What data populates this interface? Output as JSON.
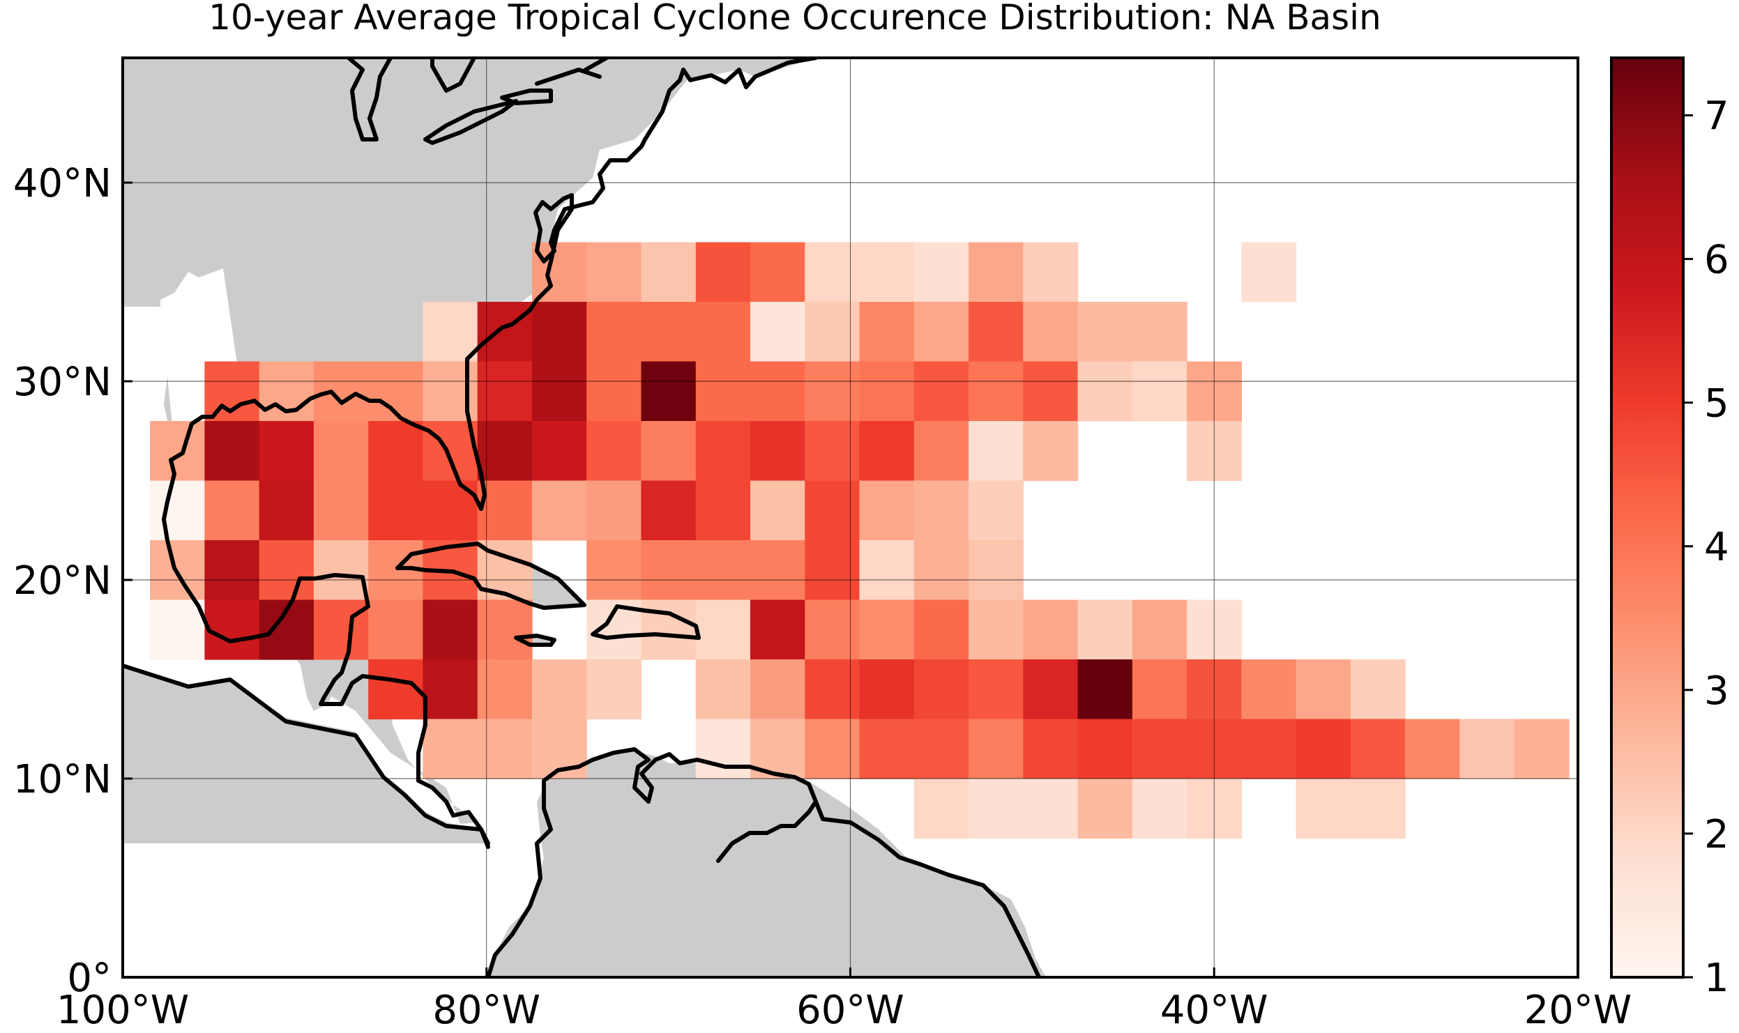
{
  "title": "10-year Average Tropical Cyclone Occurence Distribution: NA Basin",
  "colors": {
    "land": "#cccccc",
    "coastline": "#000000",
    "gridline": "#000000",
    "colormap": [
      "#fff5f0",
      "#fee0d2",
      "#fcbba1",
      "#fc9272",
      "#fb6a4a",
      "#ef3b2c",
      "#cb181d",
      "#a50f15",
      "#67000d"
    ]
  },
  "map": {
    "projection": "PlateCarree",
    "lon_range": [
      -100,
      -20
    ],
    "lat_range": [
      0,
      50
    ],
    "x_ticks": [
      {
        "lon": -100,
        "label": "100°W"
      },
      {
        "lon": -80,
        "label": "80°W"
      },
      {
        "lon": -60,
        "label": "60°W"
      },
      {
        "lon": -40,
        "label": "40°W"
      },
      {
        "lon": -20,
        "label": "20°W"
      }
    ],
    "y_ticks": [
      {
        "lat": 0,
        "label": "0°"
      },
      {
        "lat": 10,
        "label": "10°N"
      },
      {
        "lat": 20,
        "label": "20°N"
      },
      {
        "lat": 30,
        "label": "30°N"
      },
      {
        "lat": 40,
        "label": "40°N"
      }
    ]
  },
  "colorbar": {
    "min": 1,
    "max": 7.4,
    "ticks": [
      {
        "value": 1,
        "label": "1"
      },
      {
        "value": 2,
        "label": "2"
      },
      {
        "value": 3,
        "label": "3"
      },
      {
        "value": 4,
        "label": "4"
      },
      {
        "value": 5,
        "label": "5"
      },
      {
        "value": 6,
        "label": "6"
      },
      {
        "value": 7,
        "label": "7"
      }
    ]
  },
  "chart_data": {
    "type": "heatmap",
    "title": "10-year Average Tropical Cyclone Occurence Distribution: NA Basin",
    "cell_size_deg": 3,
    "vmin": 1,
    "vmax": 7.4,
    "rows": [
      {
        "lat_bottom": 34.0,
        "lat_top": 37.0,
        "cells": [
          {
            "lon": -77.5,
            "value": 3.2
          },
          {
            "lon": -74.5,
            "value": 3.0
          },
          {
            "lon": -71.5,
            "value": 2.4
          },
          {
            "lon": -68.5,
            "value": 4.6
          },
          {
            "lon": -65.5,
            "value": 4.2
          },
          {
            "lon": -62.5,
            "value": 2.0
          },
          {
            "lon": -59.5,
            "value": 2.0
          },
          {
            "lon": -56.5,
            "value": 1.8
          },
          {
            "lon": -53.5,
            "value": 3.0
          },
          {
            "lon": -50.5,
            "value": 2.2
          },
          {
            "lon": -38.5,
            "value": 1.8
          }
        ]
      },
      {
        "lat_bottom": 31.0,
        "lat_top": 34.0,
        "cells": [
          {
            "lon": -83.5,
            "value": 2.0
          },
          {
            "lon": -80.5,
            "value": 6.0
          },
          {
            "lon": -77.5,
            "value": 6.4
          },
          {
            "lon": -74.5,
            "value": 4.2
          },
          {
            "lon": -71.5,
            "value": 4.2
          },
          {
            "lon": -68.5,
            "value": 4.2
          },
          {
            "lon": -65.5,
            "value": 1.6
          },
          {
            "lon": -62.5,
            "value": 2.3
          },
          {
            "lon": -59.5,
            "value": 3.6
          },
          {
            "lon": -56.5,
            "value": 3.0
          },
          {
            "lon": -53.5,
            "value": 4.5
          },
          {
            "lon": -50.5,
            "value": 3.0
          },
          {
            "lon": -47.5,
            "value": 2.6
          },
          {
            "lon": -44.5,
            "value": 2.6
          }
        ]
      },
      {
        "lat_bottom": 28.0,
        "lat_top": 31.0,
        "cells": [
          {
            "lon": -95.5,
            "value": 4.5
          },
          {
            "lon": -92.5,
            "value": 3.0
          },
          {
            "lon": -89.5,
            "value": 3.5
          },
          {
            "lon": -86.5,
            "value": 3.5
          },
          {
            "lon": -83.5,
            "value": 2.8
          },
          {
            "lon": -80.5,
            "value": 5.5
          },
          {
            "lon": -77.5,
            "value": 6.4
          },
          {
            "lon": -74.5,
            "value": 4.2
          },
          {
            "lon": -71.5,
            "value": 7.3
          },
          {
            "lon": -68.5,
            "value": 4.2
          },
          {
            "lon": -65.5,
            "value": 4.2
          },
          {
            "lon": -62.5,
            "value": 3.8
          },
          {
            "lon": -59.5,
            "value": 4.0
          },
          {
            "lon": -56.5,
            "value": 4.5
          },
          {
            "lon": -53.5,
            "value": 4.0
          },
          {
            "lon": -50.5,
            "value": 4.5
          },
          {
            "lon": -47.5,
            "value": 2.2
          },
          {
            "lon": -44.5,
            "value": 2.0
          },
          {
            "lon": -41.5,
            "value": 3.0
          }
        ]
      },
      {
        "lat_bottom": 25.0,
        "lat_top": 28.0,
        "cells": [
          {
            "lon": -98.5,
            "value": 3.0
          },
          {
            "lon": -95.5,
            "value": 6.5
          },
          {
            "lon": -92.5,
            "value": 5.8
          },
          {
            "lon": -89.5,
            "value": 3.6
          },
          {
            "lon": -86.5,
            "value": 5.0
          },
          {
            "lon": -83.5,
            "value": 4.5
          },
          {
            "lon": -80.5,
            "value": 6.4
          },
          {
            "lon": -77.5,
            "value": 5.8
          },
          {
            "lon": -74.5,
            "value": 4.5
          },
          {
            "lon": -71.5,
            "value": 3.8
          },
          {
            "lon": -68.5,
            "value": 4.8
          },
          {
            "lon": -65.5,
            "value": 5.2
          },
          {
            "lon": -62.5,
            "value": 4.5
          },
          {
            "lon": -59.5,
            "value": 5.0
          },
          {
            "lon": -56.5,
            "value": 3.8
          },
          {
            "lon": -53.5,
            "value": 1.8
          },
          {
            "lon": -50.5,
            "value": 2.6
          },
          {
            "lon": -41.5,
            "value": 2.2
          }
        ]
      },
      {
        "lat_bottom": 22.0,
        "lat_top": 25.0,
        "cells": [
          {
            "lon": -98.5,
            "value": 1.0
          },
          {
            "lon": -95.5,
            "value": 3.8
          },
          {
            "lon": -92.5,
            "value": 6.0
          },
          {
            "lon": -89.5,
            "value": 3.6
          },
          {
            "lon": -86.5,
            "value": 5.0
          },
          {
            "lon": -83.5,
            "value": 5.0
          },
          {
            "lon": -80.5,
            "value": 4.2
          },
          {
            "lon": -77.5,
            "value": 3.0
          },
          {
            "lon": -74.5,
            "value": 3.2
          },
          {
            "lon": -71.5,
            "value": 5.5
          },
          {
            "lon": -68.5,
            "value": 4.8
          },
          {
            "lon": -65.5,
            "value": 2.5
          },
          {
            "lon": -62.5,
            "value": 4.8
          },
          {
            "lon": -59.5,
            "value": 3.0
          },
          {
            "lon": -56.5,
            "value": 2.8
          },
          {
            "lon": -53.5,
            "value": 2.2
          }
        ]
      },
      {
        "lat_bottom": 19.0,
        "lat_top": 22.0,
        "cells": [
          {
            "lon": -98.5,
            "value": 2.8
          },
          {
            "lon": -95.5,
            "value": 6.2
          },
          {
            "lon": -92.5,
            "value": 4.5
          },
          {
            "lon": -89.5,
            "value": 2.5
          },
          {
            "lon": -86.5,
            "value": 3.5
          },
          {
            "lon": -83.5,
            "value": 4.5
          },
          {
            "lon": -80.5,
            "value": 2.5
          },
          {
            "lon": -74.5,
            "value": 3.5
          },
          {
            "lon": -71.5,
            "value": 3.8
          },
          {
            "lon": -68.5,
            "value": 3.8
          },
          {
            "lon": -65.5,
            "value": 3.8
          },
          {
            "lon": -62.5,
            "value": 4.8
          },
          {
            "lon": -59.5,
            "value": 2.0
          },
          {
            "lon": -56.5,
            "value": 2.8
          },
          {
            "lon": -53.5,
            "value": 2.4
          }
        ]
      },
      {
        "lat_bottom": 16.0,
        "lat_top": 19.0,
        "cells": [
          {
            "lon": -98.5,
            "value": 1.0
          },
          {
            "lon": -95.5,
            "value": 5.8
          },
          {
            "lon": -92.5,
            "value": 6.8
          },
          {
            "lon": -89.5,
            "value": 4.5
          },
          {
            "lon": -86.5,
            "value": 3.8
          },
          {
            "lon": -83.5,
            "value": 6.5
          },
          {
            "lon": -80.5,
            "value": 3.8
          },
          {
            "lon": -74.5,
            "value": 1.8
          },
          {
            "lon": -71.5,
            "value": 2.2
          },
          {
            "lon": -68.5,
            "value": 2.0
          },
          {
            "lon": -65.5,
            "value": 6.0
          },
          {
            "lon": -62.5,
            "value": 3.8
          },
          {
            "lon": -59.5,
            "value": 3.5
          },
          {
            "lon": -56.5,
            "value": 4.2
          },
          {
            "lon": -53.5,
            "value": 2.6
          },
          {
            "lon": -50.5,
            "value": 3.0
          },
          {
            "lon": -47.5,
            "value": 2.2
          },
          {
            "lon": -44.5,
            "value": 3.0
          },
          {
            "lon": -41.5,
            "value": 1.8
          }
        ]
      },
      {
        "lat_bottom": 13.0,
        "lat_top": 16.0,
        "cells": [
          {
            "lon": -86.5,
            "value": 5.0
          },
          {
            "lon": -83.5,
            "value": 6.2
          },
          {
            "lon": -80.5,
            "value": 3.5
          },
          {
            "lon": -77.5,
            "value": 2.6
          },
          {
            "lon": -74.5,
            "value": 2.2
          },
          {
            "lon": -68.5,
            "value": 2.5
          },
          {
            "lon": -65.5,
            "value": 3.2
          },
          {
            "lon": -62.5,
            "value": 4.8
          },
          {
            "lon": -59.5,
            "value": 5.2
          },
          {
            "lon": -56.5,
            "value": 4.8
          },
          {
            "lon": -53.5,
            "value": 4.5
          },
          {
            "lon": -50.5,
            "value": 5.5
          },
          {
            "lon": -47.5,
            "value": 7.4
          },
          {
            "lon": -44.5,
            "value": 4.0
          },
          {
            "lon": -41.5,
            "value": 4.6
          },
          {
            "lon": -38.5,
            "value": 3.6
          },
          {
            "lon": -35.5,
            "value": 3.0
          },
          {
            "lon": -32.5,
            "value": 2.2
          }
        ]
      },
      {
        "lat_bottom": 10.0,
        "lat_top": 13.0,
        "cells": [
          {
            "lon": -83.5,
            "value": 2.8
          },
          {
            "lon": -80.5,
            "value": 2.8
          },
          {
            "lon": -77.5,
            "value": 2.6
          },
          {
            "lon": -68.5,
            "value": 1.6
          },
          {
            "lon": -65.5,
            "value": 2.6
          },
          {
            "lon": -62.5,
            "value": 3.5
          },
          {
            "lon": -59.5,
            "value": 4.5
          },
          {
            "lon": -56.5,
            "value": 4.5
          },
          {
            "lon": -53.5,
            "value": 3.8
          },
          {
            "lon": -50.5,
            "value": 4.8
          },
          {
            "lon": -47.5,
            "value": 5.0
          },
          {
            "lon": -44.5,
            "value": 4.8
          },
          {
            "lon": -41.5,
            "value": 4.8
          },
          {
            "lon": -38.5,
            "value": 4.8
          },
          {
            "lon": -35.5,
            "value": 5.0
          },
          {
            "lon": -32.5,
            "value": 4.5
          },
          {
            "lon": -29.5,
            "value": 3.6
          },
          {
            "lon": -26.5,
            "value": 2.4
          },
          {
            "lon": -23.5,
            "value": 2.8
          }
        ]
      },
      {
        "lat_bottom": 7.0,
        "lat_top": 10.0,
        "cells": [
          {
            "lon": -56.5,
            "value": 2.0
          },
          {
            "lon": -53.5,
            "value": 1.8
          },
          {
            "lon": -50.5,
            "value": 1.8
          },
          {
            "lon": -47.5,
            "value": 2.6
          },
          {
            "lon": -44.5,
            "value": 1.8
          },
          {
            "lon": -41.5,
            "value": 2.0
          },
          {
            "lon": -35.5,
            "value": 2.0
          },
          {
            "lon": -32.5,
            "value": 2.0
          }
        ]
      }
    ]
  }
}
